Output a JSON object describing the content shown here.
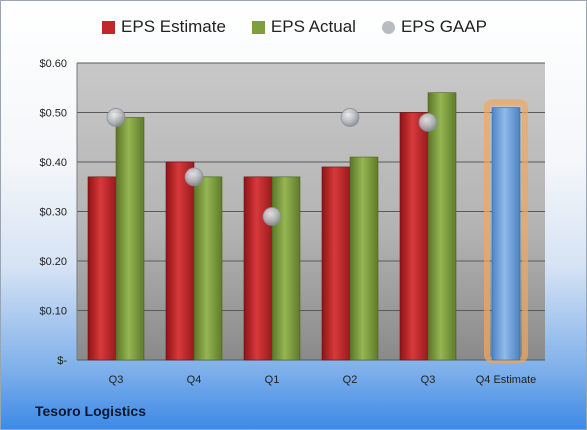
{
  "chart_data": {
    "type": "bar",
    "categories": [
      "Q3",
      "Q4",
      "Q1",
      "Q2",
      "Q3",
      "Q4 Estimate"
    ],
    "series": [
      {
        "name": "EPS Estimate",
        "type": "bar",
        "color": "#c0282a",
        "values": [
          0.37,
          0.4,
          0.37,
          0.39,
          0.5,
          null
        ]
      },
      {
        "name": "EPS Actual",
        "type": "bar",
        "color": "#7f9f3c",
        "values": [
          0.49,
          0.37,
          0.37,
          0.41,
          0.54,
          0.51
        ]
      },
      {
        "name": "EPS GAAP",
        "type": "scatter",
        "color": "#b8bcc2",
        "values": [
          0.49,
          0.37,
          0.29,
          0.49,
          0.48,
          null
        ]
      }
    ],
    "estimate_bar_color": "#6fa0d8",
    "estimate_glow_color": "#f2a65a",
    "ylim": [
      0,
      0.6
    ],
    "y_ticks": [
      0,
      0.1,
      0.2,
      0.3,
      0.4,
      0.5,
      0.6
    ],
    "y_tick_labels": [
      "$-",
      "$0.10",
      "$0.20",
      "$0.30",
      "$0.40",
      "$0.50",
      "$0.60"
    ],
    "grid": true,
    "legend_position": "top"
  },
  "footer": {
    "company": "Tesoro Logistics"
  }
}
